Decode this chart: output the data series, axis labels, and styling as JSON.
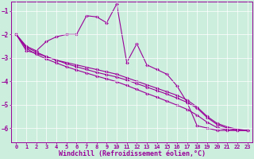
{
  "bg_color": "#cceedd",
  "line_color": "#990099",
  "marker": "D",
  "markersize": 2.0,
  "linewidth": 0.8,
  "xlabel": "Windchill (Refroidissement éolien,°C)",
  "xlabel_fontsize": 6.0,
  "xtick_fontsize": 5.0,
  "ytick_fontsize": 5.5,
  "xlim": [
    -0.5,
    23.5
  ],
  "ylim": [
    -6.6,
    -0.6
  ],
  "yticks": [
    -6,
    -5,
    -4,
    -3,
    -2,
    -1
  ],
  "xticks": [
    0,
    1,
    2,
    3,
    4,
    5,
    6,
    7,
    8,
    9,
    10,
    11,
    12,
    13,
    14,
    15,
    16,
    17,
    18,
    19,
    20,
    21,
    22,
    23
  ],
  "grid_color": "#ffffff",
  "series1": [
    [
      0,
      -2.0
    ],
    [
      1,
      -2.5
    ],
    [
      2,
      -2.7
    ],
    [
      3,
      -2.3
    ],
    [
      4,
      -2.1
    ],
    [
      5,
      -2.0
    ],
    [
      6,
      -2.0
    ],
    [
      7,
      -1.2
    ],
    [
      8,
      -1.25
    ],
    [
      9,
      -1.5
    ],
    [
      10,
      -0.7
    ],
    [
      11,
      -3.2
    ],
    [
      12,
      -2.4
    ],
    [
      13,
      -3.3
    ],
    [
      14,
      -3.5
    ],
    [
      15,
      -3.7
    ],
    [
      16,
      -4.2
    ],
    [
      17,
      -4.9
    ],
    [
      18,
      -5.9
    ],
    [
      19,
      -6.0
    ],
    [
      20,
      -6.1
    ],
    [
      21,
      -6.1
    ],
    [
      22,
      -6.1
    ],
    [
      23,
      -6.1
    ]
  ],
  "series2": [
    [
      0,
      -2.0
    ],
    [
      1,
      -2.7
    ],
    [
      2,
      -2.8
    ],
    [
      3,
      -2.95
    ],
    [
      4,
      -3.1
    ],
    [
      5,
      -3.2
    ],
    [
      6,
      -3.3
    ],
    [
      7,
      -3.4
    ],
    [
      8,
      -3.5
    ],
    [
      9,
      -3.6
    ],
    [
      10,
      -3.7
    ],
    [
      11,
      -3.85
    ],
    [
      12,
      -4.0
    ],
    [
      13,
      -4.15
    ],
    [
      14,
      -4.3
    ],
    [
      15,
      -4.45
    ],
    [
      16,
      -4.6
    ],
    [
      17,
      -4.8
    ],
    [
      18,
      -5.1
    ],
    [
      19,
      -5.5
    ],
    [
      20,
      -5.8
    ],
    [
      21,
      -5.95
    ],
    [
      22,
      -6.05
    ],
    [
      23,
      -6.1
    ]
  ],
  "series3": [
    [
      0,
      -2.0
    ],
    [
      1,
      -2.55
    ],
    [
      2,
      -2.75
    ],
    [
      3,
      -2.95
    ],
    [
      4,
      -3.1
    ],
    [
      5,
      -3.25
    ],
    [
      6,
      -3.38
    ],
    [
      7,
      -3.5
    ],
    [
      8,
      -3.62
    ],
    [
      9,
      -3.72
    ],
    [
      10,
      -3.82
    ],
    [
      11,
      -3.95
    ],
    [
      12,
      -4.1
    ],
    [
      13,
      -4.25
    ],
    [
      14,
      -4.4
    ],
    [
      15,
      -4.55
    ],
    [
      16,
      -4.72
    ],
    [
      17,
      -4.9
    ],
    [
      18,
      -5.15
    ],
    [
      19,
      -5.55
    ],
    [
      20,
      -5.85
    ],
    [
      21,
      -6.0
    ],
    [
      22,
      -6.08
    ],
    [
      23,
      -6.1
    ]
  ],
  "series4": [
    [
      0,
      -2.0
    ],
    [
      1,
      -2.6
    ],
    [
      2,
      -2.85
    ],
    [
      3,
      -3.05
    ],
    [
      4,
      -3.22
    ],
    [
      5,
      -3.38
    ],
    [
      6,
      -3.52
    ],
    [
      7,
      -3.65
    ],
    [
      8,
      -3.78
    ],
    [
      9,
      -3.9
    ],
    [
      10,
      -4.02
    ],
    [
      11,
      -4.18
    ],
    [
      12,
      -4.35
    ],
    [
      13,
      -4.52
    ],
    [
      14,
      -4.68
    ],
    [
      15,
      -4.85
    ],
    [
      16,
      -5.02
    ],
    [
      17,
      -5.2
    ],
    [
      18,
      -5.45
    ],
    [
      19,
      -5.75
    ],
    [
      20,
      -5.98
    ],
    [
      21,
      -6.08
    ],
    [
      22,
      -6.1
    ],
    [
      23,
      -6.1
    ]
  ]
}
